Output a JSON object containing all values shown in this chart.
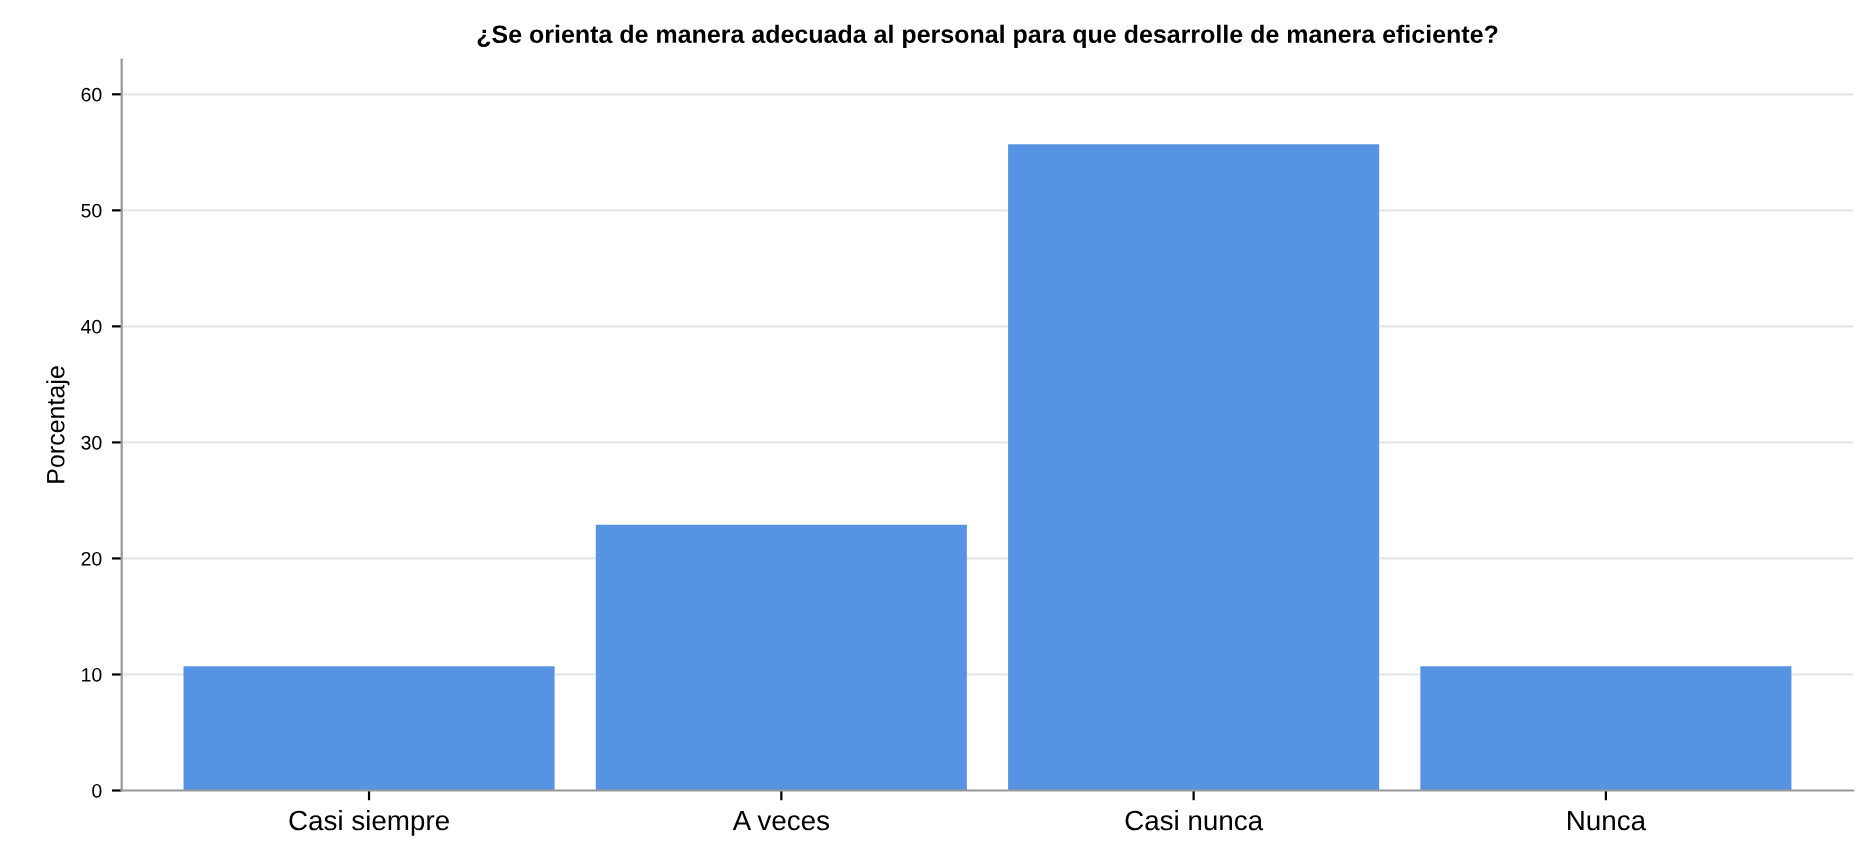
{
  "chart_data": {
    "type": "bar",
    "title": "¿Se orienta de manera adecuada al personal para que desarrolle de manera eficiente?",
    "ylabel": "Porcentaje",
    "categories": [
      "Casi siempre",
      "A veces",
      "Casi nunca",
      "Nunca"
    ],
    "values": [
      10.7,
      22.9,
      55.7,
      10.7
    ],
    "color": "#5694e3",
    "ylim": [
      0,
      63
    ],
    "yticks": [
      0,
      10,
      20,
      30,
      40,
      50,
      60
    ],
    "grid": "y"
  }
}
